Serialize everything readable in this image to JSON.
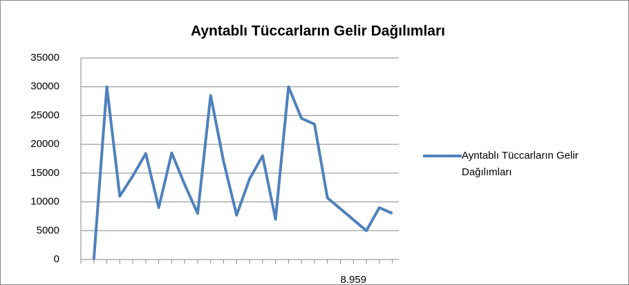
{
  "chart_data": {
    "type": "line",
    "title": "Ayntablı Tüccarların Gelir Dağılımları",
    "categories": [
      null,
      null,
      null,
      null,
      null,
      null,
      null,
      null,
      null,
      null,
      null,
      null,
      null,
      null,
      null,
      null,
      null,
      null,
      null,
      null,
      "8.959",
      null,
      null,
      null
    ],
    "series": [
      {
        "name": "Ayntablı Tüccarların Gelir Dağılımları",
        "color": "#4f81bd",
        "values": [
          0,
          30000,
          11000,
          14500,
          18400,
          9000,
          18500,
          13000,
          8000,
          28500,
          17000,
          7700,
          14000,
          18000,
          7000,
          30000,
          24500,
          23500,
          10700,
          8800,
          6900,
          5000,
          9000,
          8000
        ]
      }
    ],
    "ylim": [
      0,
      35000
    ],
    "yticks": [
      0,
      5000,
      10000,
      15000,
      20000,
      25000,
      30000,
      35000
    ],
    "grid": true,
    "legend": "right"
  }
}
